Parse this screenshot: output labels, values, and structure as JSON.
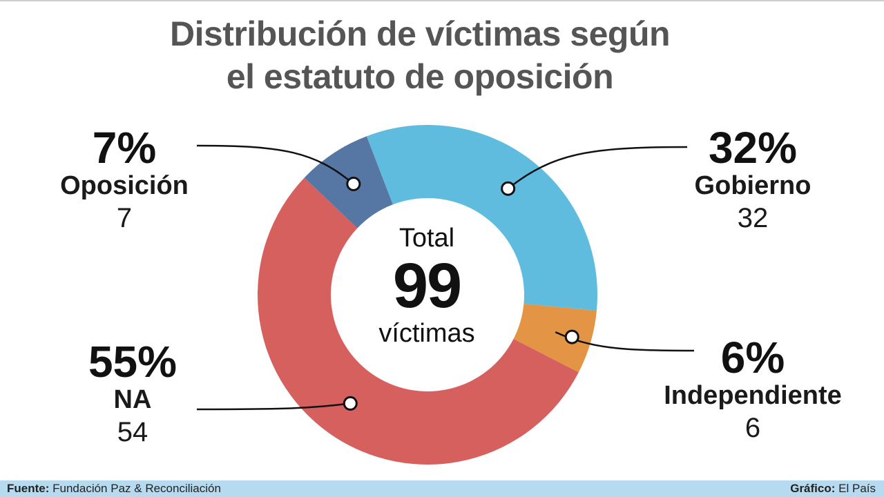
{
  "title": {
    "line1": "Distribución de víctimas según",
    "line2": "el estatuto de oposición"
  },
  "center": {
    "top": "Total",
    "value": "99",
    "bottom": "víctimas"
  },
  "footer": {
    "source_label": "Fuente:",
    "source_text": "Fundación Paz & Reconciliación",
    "credit_label": "Gráfico:",
    "credit_text": "El País"
  },
  "chart_data": {
    "type": "pie",
    "donut": true,
    "total": 99,
    "categories": [
      "Gobierno",
      "Independiente",
      "NA",
      "Oposición"
    ],
    "values": [
      32,
      6,
      54,
      7
    ],
    "percent_labels": [
      "32%",
      "6%",
      "55%",
      "7%"
    ],
    "count_labels": [
      "32",
      "6",
      "54",
      "7"
    ],
    "colors": [
      "#5fbcdf",
      "#e39545",
      "#d5605e",
      "#5677a3"
    ],
    "start_angle_deg": -21,
    "direction": "clockwise"
  }
}
